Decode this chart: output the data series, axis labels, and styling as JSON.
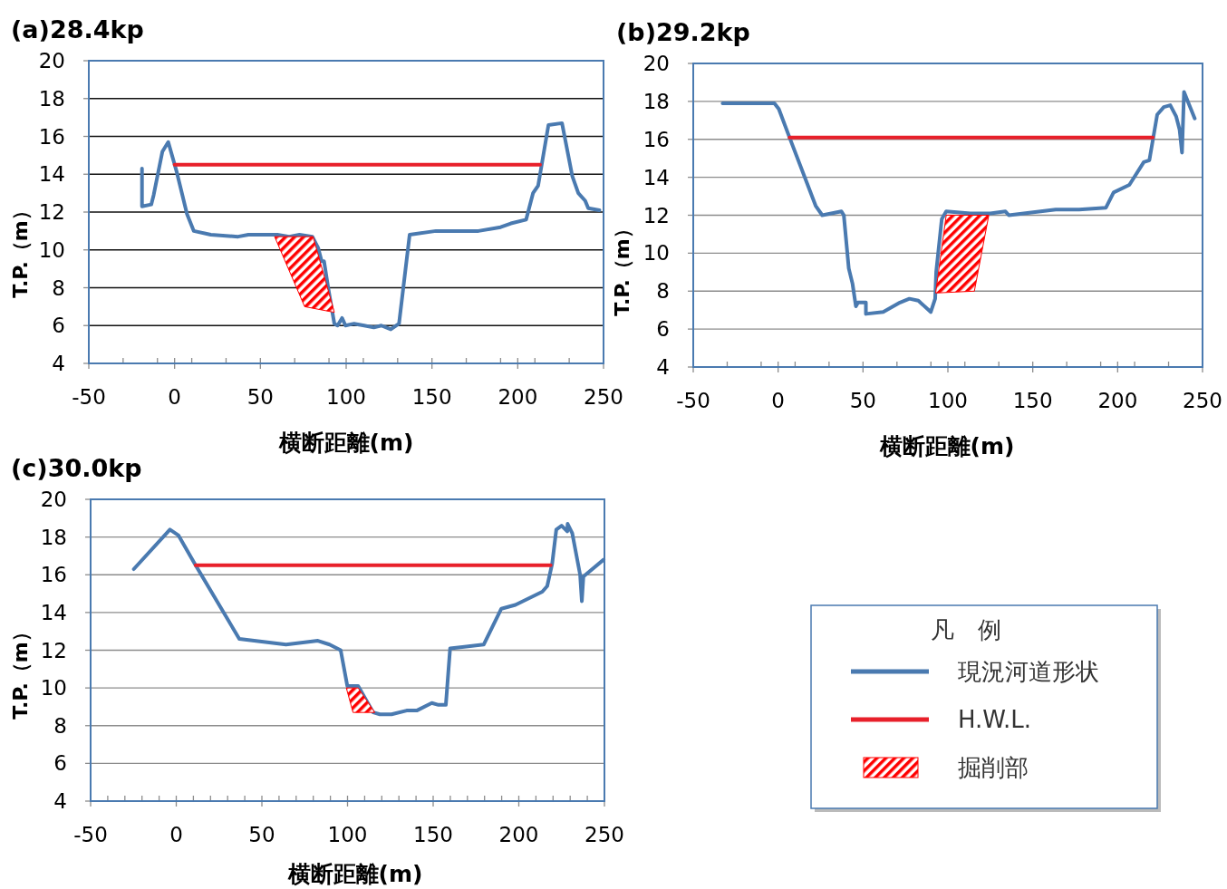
{
  "chart_data": [
    {
      "type": "line",
      "title": "(a)28.4kp",
      "xlabel": "横断距離(m)",
      "ylabel": "T.P.（m）",
      "xlim": [
        -50,
        250
      ],
      "ylim": [
        4,
        20
      ],
      "xticks": [
        -50,
        {
          "value": -30,
          "label": null
        },
        {
          "value": -10,
          "label": null
        },
        0,
        {
          "value": 10,
          "label": null
        },
        {
          "value": 30,
          "label": null
        },
        50,
        {
          "value": 70,
          "label": null
        },
        {
          "value": 90,
          "label": null
        },
        100,
        {
          "value": 110,
          "label": null
        },
        {
          "value": 130,
          "label": null
        },
        150,
        {
          "value": 170,
          "label": null
        },
        {
          "value": 190,
          "label": null
        },
        200,
        {
          "value": 210,
          "label": null
        },
        {
          "value": 230,
          "label": null
        },
        250
      ],
      "yticks": [
        4,
        6,
        8,
        10,
        12,
        14,
        16,
        18,
        20
      ],
      "grid": "y",
      "series": [
        {
          "color": "#4a7ab0",
          "x": [
            -19.0,
            -19.0,
            -13.6,
            -12.2,
            -7.1,
            -3.7,
            1.3,
            7.2,
            11.2,
            21.1,
            37.0,
            43.0,
            59.9,
            66.8,
            72.8,
            80.3,
            83.7,
            85.7,
            87.1,
            89.7,
            93.1,
            95.0,
            97.6,
            99.6,
            104.6,
            110.5,
            116.1,
            120.5,
            126.0,
            130.8,
            137.0,
            152.3,
            177.1,
            190.0,
            196.0,
            204.9,
            208.9,
            211.9,
            217.9,
            225.8,
            231.8,
            235.3,
            239.3,
            241.1,
            247.6
          ],
          "values": [
            14.3,
            12.3,
            12.4,
            12.9,
            15.2,
            15.7,
            14.1,
            11.9,
            11.0,
            10.8,
            10.7,
            10.8,
            10.8,
            10.7,
            10.8,
            10.7,
            10.1,
            9.4,
            9.4,
            7.9,
            6.1,
            6.0,
            6.4,
            6.0,
            6.1,
            6.0,
            5.9,
            6.0,
            5.8,
            6.1,
            10.8,
            11.0,
            11.0,
            11.2,
            11.4,
            11.6,
            13.0,
            13.4,
            16.6,
            16.7,
            13.9,
            13.0,
            12.6,
            12.2,
            12.1
          ]
        },
        {
          "color": "#e8202a",
          "x": [
            0,
            213
          ],
          "values": [
            14.5,
            14.5
          ]
        },
        {
          "type": "area",
          "color": "#ff0000",
          "x": [
            58.3,
            80.7,
            93.1,
            75.8
          ],
          "values": [
            10.7,
            10.7,
            6.7,
            7.0
          ]
        }
      ]
    },
    {
      "type": "line",
      "title": "(b)29.2kp",
      "xlabel": "横断距離(m)",
      "ylabel": "T.P.（m）",
      "xlim": [
        -50,
        250
      ],
      "ylim": [
        4,
        20
      ],
      "xticks": [
        -50,
        {
          "value": -30,
          "label": null
        },
        {
          "value": -10,
          "label": null
        },
        0,
        {
          "value": 10,
          "label": null
        },
        {
          "value": 30,
          "label": null
        },
        50,
        {
          "value": 70,
          "label": null
        },
        {
          "value": 90,
          "label": null
        },
        100,
        {
          "value": 110,
          "label": null
        },
        {
          "value": 130,
          "label": null
        },
        150,
        {
          "value": 170,
          "label": null
        },
        {
          "value": 190,
          "label": null
        },
        200,
        {
          "value": 210,
          "label": null
        },
        {
          "value": 230,
          "label": null
        },
        250
      ],
      "yticks": [
        4,
        6,
        8,
        10,
        12,
        14,
        16,
        18,
        20
      ],
      "grid": "y",
      "series": [
        {
          "color": "#4a7ab0",
          "x": [
            -32.7,
            -2.2,
            0.4,
            6.7,
            22.1,
            26.0,
            37.3,
            38.7,
            41.6,
            43.8,
            45.8,
            47.1,
            51.7,
            51.7,
            61.9,
            71.8,
            77.3,
            82.6,
            89.9,
            92.5,
            93.1,
            96.4,
            99.0,
            113.2,
            125.0,
            133.9,
            135.9,
            163.5,
            177.3,
            193.1,
            197.6,
            206.9,
            215.4,
            218.7,
            223.3,
            227.2,
            231.0,
            234.5,
            236.5,
            237.9,
            239.1,
            245.4
          ],
          "values": [
            17.9,
            17.9,
            17.6,
            16.1,
            12.5,
            12.0,
            12.2,
            12.0,
            9.2,
            8.4,
            7.2,
            7.4,
            7.4,
            6.8,
            6.9,
            7.4,
            7.6,
            7.5,
            6.9,
            7.6,
            9.0,
            11.8,
            12.2,
            12.1,
            12.1,
            12.2,
            12.0,
            12.3,
            12.3,
            12.4,
            13.2,
            13.6,
            14.8,
            14.9,
            17.3,
            17.7,
            17.8,
            17.2,
            16.5,
            15.3,
            18.5,
            17.1
          ]
        },
        {
          "color": "#e8202a",
          "x": [
            6.7,
            220.7
          ],
          "values": [
            16.1,
            16.1
          ]
        },
        {
          "type": "area",
          "color": "#ff0000",
          "x": [
            99.0,
            124.1,
            115.6,
            92.8
          ],
          "values": [
            12.0,
            12.0,
            8.0,
            7.9
          ]
        }
      ]
    },
    {
      "type": "line",
      "title": "(c)30.0kp",
      "xlabel": "横断距離(m)",
      "ylabel": "T.P.（m）",
      "xlim": [
        -50,
        250
      ],
      "ylim": [
        4,
        20
      ],
      "xticks": [
        -50,
        {
          "value": -40,
          "label": null
        },
        {
          "value": -30,
          "label": null
        },
        {
          "value": -20,
          "label": null
        },
        {
          "value": -10,
          "label": null
        },
        0,
        {
          "value": 10,
          "label": null
        },
        {
          "value": 20,
          "label": null
        },
        {
          "value": 30,
          "label": null
        },
        {
          "value": 40,
          "label": null
        },
        50,
        {
          "value": 60,
          "label": null
        },
        {
          "value": 70,
          "label": null
        },
        {
          "value": 80,
          "label": null
        },
        {
          "value": 90,
          "label": null
        },
        100,
        {
          "value": 110,
          "label": null
        },
        {
          "value": 120,
          "label": null
        },
        {
          "value": 130,
          "label": null
        },
        {
          "value": 140,
          "label": null
        },
        150,
        {
          "value": 160,
          "label": null
        },
        {
          "value": 170,
          "label": null
        },
        {
          "value": 180,
          "label": null
        },
        {
          "value": 190,
          "label": null
        },
        200,
        {
          "value": 210,
          "label": null
        },
        {
          "value": 220,
          "label": null
        },
        {
          "value": 230,
          "label": null
        },
        {
          "value": 240,
          "label": null
        },
        250
      ],
      "yticks": [
        4,
        6,
        8,
        10,
        12,
        14,
        16,
        18,
        20
      ],
      "grid": "y",
      "legend": "right",
      "legend_title": "凡　例",
      "series": [
        {
          "name": "現況河道形状",
          "color": "#4a7ab0",
          "x": [
            -24.8,
            -3.7,
            1.2,
            11.3,
            36.8,
            64.1,
            82.7,
            89.5,
            96.0,
            99.9,
            106.2,
            115.0,
            118.9,
            125.7,
            134.5,
            140.4,
            149.2,
            153.1,
            157.4,
            159.9,
            179.5,
            189.8,
            198.0,
            213.7,
            216.6,
            219.5,
            221.9,
            225.0,
            228.3,
            228.5,
            231.2,
            235.8,
            236.8,
            237.7,
            249.5
          ],
          "values": [
            16.3,
            18.4,
            18.1,
            16.5,
            12.6,
            12.3,
            12.5,
            12.3,
            12.0,
            10.1,
            10.1,
            8.7,
            8.6,
            8.6,
            8.8,
            8.8,
            9.2,
            9.1,
            9.1,
            12.1,
            12.3,
            14.2,
            14.4,
            15.1,
            15.4,
            16.6,
            18.4,
            18.6,
            18.3,
            18.7,
            18.2,
            16.0,
            14.6,
            15.9,
            16.8
          ]
        },
        {
          "name": "H.W.L.",
          "color": "#e8202a",
          "x": [
            11.3,
            218.6
          ],
          "values": [
            16.5,
            16.5
          ]
        },
        {
          "name": "掘削部",
          "type": "area",
          "color": "#ff0000",
          "x": [
            99.3,
            106.2,
            115.9,
            103.2
          ],
          "values": [
            10.0,
            10.0,
            8.7,
            8.7
          ]
        }
      ]
    }
  ]
}
